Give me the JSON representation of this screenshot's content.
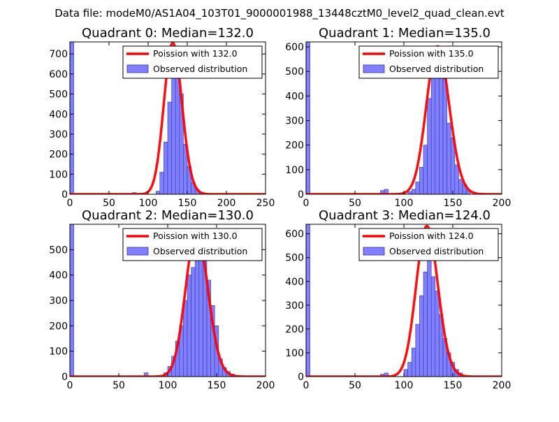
{
  "suptitle": "Data file: modeM0/AS1A04_103T01_9000001988_13448cztM0_level2_quad_clean.evt",
  "colors": {
    "bar_fill": "#8080ff",
    "bar_edge": "#3333aa",
    "curve": "#ff0000",
    "axes": "#000000",
    "background": "#ffffff"
  },
  "chart_data": [
    {
      "type": "bar",
      "title": "Quadrant 0: Median=132.0",
      "median": 132.0,
      "xlim": [
        0,
        250
      ],
      "ylim": [
        0,
        760
      ],
      "xticks": [
        0,
        50,
        100,
        150,
        200,
        250
      ],
      "yticks": [
        0,
        100,
        200,
        300,
        400,
        500,
        600,
        700
      ],
      "bin_width": 5,
      "bins": [
        [
          0,
          760
        ],
        [
          80,
          8
        ],
        [
          110,
          15
        ],
        [
          115,
          110
        ],
        [
          120,
          260
        ],
        [
          125,
          460
        ],
        [
          130,
          740
        ],
        [
          135,
          610
        ],
        [
          140,
          500
        ],
        [
          145,
          250
        ],
        [
          150,
          140
        ],
        [
          155,
          60
        ],
        [
          160,
          25
        ],
        [
          165,
          5
        ]
      ],
      "legend": [
        "Poission with 132.0",
        "Observed distribution"
      ],
      "legend_loc": "upper right"
    },
    {
      "type": "bar",
      "title": "Quadrant 1: Median=135.0",
      "median": 135.0,
      "xlim": [
        0,
        200
      ],
      "ylim": [
        0,
        620
      ],
      "xticks": [
        0,
        50,
        100,
        150,
        200
      ],
      "yticks": [
        0,
        100,
        200,
        300,
        400,
        500,
        600
      ],
      "bin_width": 4,
      "bins": [
        [
          0,
          620
        ],
        [
          76,
          15
        ],
        [
          80,
          20
        ],
        [
          104,
          10
        ],
        [
          108,
          20
        ],
        [
          112,
          50
        ],
        [
          116,
          110
        ],
        [
          120,
          200
        ],
        [
          124,
          390
        ],
        [
          128,
          480
        ],
        [
          132,
          590
        ],
        [
          136,
          570
        ],
        [
          140,
          470
        ],
        [
          144,
          290
        ],
        [
          148,
          230
        ],
        [
          152,
          120
        ],
        [
          156,
          60
        ],
        [
          160,
          40
        ],
        [
          164,
          15
        ]
      ],
      "legend": [
        "Poission with 135.0",
        "Observed distribution"
      ],
      "legend_loc": "upper right"
    },
    {
      "type": "bar",
      "title": "Quadrant 2: Median=130.0",
      "median": 130.0,
      "xlim": [
        0,
        200
      ],
      "ylim": [
        0,
        600
      ],
      "xticks": [
        0,
        50,
        100,
        150,
        200
      ],
      "yticks": [
        0,
        100,
        200,
        300,
        400,
        500
      ],
      "bin_width": 4,
      "bins": [
        [
          0,
          600
        ],
        [
          76,
          15
        ],
        [
          96,
          15
        ],
        [
          100,
          40
        ],
        [
          104,
          80
        ],
        [
          108,
          140
        ],
        [
          112,
          200
        ],
        [
          116,
          300
        ],
        [
          120,
          400
        ],
        [
          124,
          430
        ],
        [
          128,
          540
        ],
        [
          132,
          560
        ],
        [
          136,
          460
        ],
        [
          140,
          380
        ],
        [
          144,
          280
        ],
        [
          148,
          200
        ],
        [
          152,
          70
        ],
        [
          156,
          35
        ],
        [
          160,
          20
        ],
        [
          164,
          10
        ],
        [
          168,
          5
        ]
      ],
      "legend": [
        "Poission with 130.0",
        "Observed distribution"
      ],
      "legend_loc": "upper right"
    },
    {
      "type": "bar",
      "title": "Quadrant 3: Median=124.0",
      "median": 124.0,
      "xlim": [
        0,
        200
      ],
      "ylim": [
        0,
        640
      ],
      "xticks": [
        0,
        50,
        100,
        150,
        200
      ],
      "yticks": [
        0,
        100,
        200,
        300,
        400,
        500,
        600
      ],
      "bin_width": 4,
      "bins": [
        [
          0,
          640
        ],
        [
          76,
          10
        ],
        [
          80,
          15
        ],
        [
          100,
          30
        ],
        [
          104,
          60
        ],
        [
          108,
          120
        ],
        [
          112,
          220
        ],
        [
          116,
          340
        ],
        [
          120,
          440
        ],
        [
          124,
          620
        ],
        [
          128,
          420
        ],
        [
          132,
          360
        ],
        [
          136,
          260
        ],
        [
          140,
          160
        ],
        [
          144,
          100
        ],
        [
          148,
          60
        ],
        [
          152,
          30
        ],
        [
          156,
          15
        ]
      ],
      "legend": [
        "Poission with 124.0",
        "Observed distribution"
      ],
      "legend_loc": "upper right"
    }
  ]
}
